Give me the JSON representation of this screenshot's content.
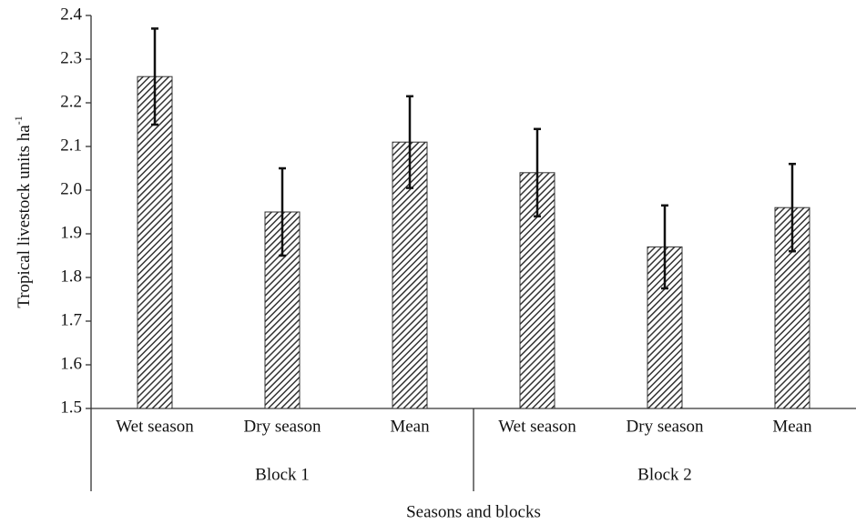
{
  "chart_data": {
    "type": "bar",
    "y_label": "Tropical livestock units ha",
    "y_label_superscript": "-1",
    "x_label": "Seasons and blocks",
    "categories": [
      "Wet season",
      "Dry season",
      "Mean",
      "Wet season",
      "Dry season",
      "Mean"
    ],
    "groups": [
      "Block 1",
      "Block 2"
    ],
    "values": [
      2.26,
      1.95,
      2.11,
      2.04,
      1.87,
      1.96
    ],
    "errors": [
      0.11,
      0.1,
      0.105,
      0.1,
      0.095,
      0.1
    ],
    "color": "#333333",
    "ylim": [
      1.5,
      2.4
    ],
    "yticks": [
      1.5,
      1.6,
      1.7,
      1.8,
      1.9,
      {
        "value": 2,
        "label": "2.0"
      },
      2.1,
      2.2,
      2.3,
      2.4
    ]
  }
}
